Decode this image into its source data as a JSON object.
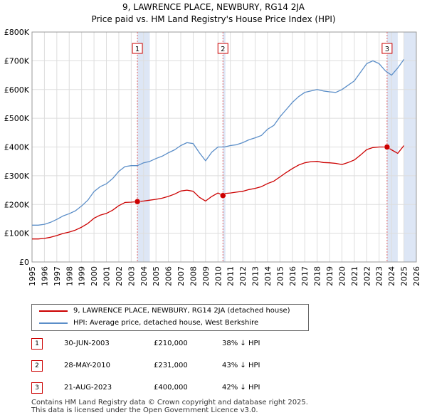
{
  "title": {
    "line1": "9, LAWRENCE PLACE, NEWBURY, RG14 2JA",
    "line2": "Price paid vs. HM Land Registry's House Price Index (HPI)"
  },
  "legend": {
    "red_label": "9, LAWRENCE PLACE, NEWBURY, RG14 2JA (detached house)",
    "blue_label": "HPI: Average price, detached house, West Berkshire"
  },
  "colors": {
    "red": "#cc0000",
    "blue": "#5b8ec8",
    "shade": "#dde6f5",
    "grid": "#dddddd",
    "marker_dash": "#e06666"
  },
  "sales": [
    {
      "num": "1",
      "date": "30-JUN-2003",
      "price": "£210,000",
      "hpi": "38% ↓ HPI"
    },
    {
      "num": "2",
      "date": "28-MAY-2010",
      "price": "£231,000",
      "hpi": "43% ↓ HPI"
    },
    {
      "num": "3",
      "date": "21-AUG-2023",
      "price": "£400,000",
      "hpi": "42% ↓ HPI"
    }
  ],
  "footer": {
    "line1": "Contains HM Land Registry data © Crown copyright and database right 2025.",
    "line2": "This data is licensed under the Open Government Licence v3.0."
  },
  "chart_data": {
    "type": "line",
    "title": "9, LAWRENCE PLACE, NEWBURY, RG14 2JA",
    "subtitle": "Price paid vs. HM Land Registry's House Price Index (HPI)",
    "xlim": [
      1995,
      2026
    ],
    "ylim": [
      0,
      800000
    ],
    "x_ticks": [
      1995,
      1996,
      1997,
      1998,
      1999,
      2000,
      2001,
      2002,
      2003,
      2004,
      2005,
      2006,
      2007,
      2008,
      2009,
      2010,
      2011,
      2012,
      2013,
      2014,
      2015,
      2016,
      2017,
      2018,
      2019,
      2020,
      2021,
      2022,
      2023,
      2024,
      2025,
      2026
    ],
    "y_ticks": [
      {
        "value": 0,
        "label": "£0"
      },
      {
        "value": 100000,
        "label": "£100K"
      },
      {
        "value": 200000,
        "label": "£200K"
      },
      {
        "value": 300000,
        "label": "£300K"
      },
      {
        "value": 400000,
        "label": "£400K"
      },
      {
        "value": 500000,
        "label": "£500K"
      },
      {
        "value": 600000,
        "label": "£600K"
      },
      {
        "value": 700000,
        "label": "£700K"
      },
      {
        "value": 800000,
        "label": "£800K"
      }
    ],
    "shaded_ranges": [
      [
        2003.5,
        2004.5
      ],
      [
        2010.4,
        2010.6
      ],
      [
        2023.64,
        2024.5
      ],
      [
        2025.0,
        2026.0
      ]
    ],
    "sale_markers": [
      {
        "label": "1",
        "x": 2003.5,
        "y": 210000
      },
      {
        "label": "2",
        "x": 2010.4,
        "y": 231000
      },
      {
        "label": "3",
        "x": 2023.64,
        "y": 400000
      }
    ],
    "series": [
      {
        "name": "HPI: Average price, detached house, West Berkshire",
        "color": "#5b8ec8",
        "x": [
          1995,
          1995.5,
          1996,
          1996.5,
          1997,
          1997.5,
          1998,
          1998.5,
          1999,
          1999.5,
          2000,
          2000.5,
          2001,
          2001.5,
          2002,
          2002.5,
          2003,
          2003.5,
          2004,
          2004.5,
          2005,
          2005.5,
          2006,
          2006.5,
          2007,
          2007.5,
          2008,
          2008.5,
          2009,
          2009.5,
          2010,
          2010.5,
          2011,
          2011.5,
          2012,
          2012.5,
          2013,
          2013.5,
          2014,
          2014.5,
          2015,
          2015.5,
          2016,
          2016.5,
          2017,
          2017.5,
          2018,
          2018.5,
          2019,
          2019.5,
          2020,
          2020.5,
          2021,
          2021.5,
          2022,
          2022.5,
          2023,
          2023.5,
          2024,
          2024.5,
          2025
        ],
        "values": [
          128000,
          128000,
          131000,
          138000,
          148000,
          160000,
          168000,
          178000,
          195000,
          215000,
          245000,
          262000,
          272000,
          290000,
          315000,
          332000,
          335000,
          335000,
          345000,
          350000,
          360000,
          368000,
          380000,
          390000,
          405000,
          415000,
          412000,
          380000,
          352000,
          382000,
          400000,
          400000,
          405000,
          408000,
          415000,
          425000,
          432000,
          440000,
          462000,
          475000,
          505000,
          530000,
          555000,
          575000,
          590000,
          595000,
          600000,
          595000,
          592000,
          590000,
          600000,
          615000,
          630000,
          660000,
          690000,
          700000,
          690000,
          665000,
          650000,
          675000,
          705000
        ]
      },
      {
        "name": "9, LAWRENCE PLACE, NEWBURY, RG14 2JA (detached house)",
        "color": "#cc0000",
        "x": [
          1995,
          1995.5,
          1996,
          1996.5,
          1997,
          1997.5,
          1998,
          1998.5,
          1999,
          1999.5,
          2000,
          2000.5,
          2001,
          2001.5,
          2002,
          2002.5,
          2003,
          2003.5,
          2004,
          2004.5,
          2005,
          2005.5,
          2006,
          2006.5,
          2007,
          2007.5,
          2008,
          2008.5,
          2009,
          2009.5,
          2010,
          2010.4,
          2010.5,
          2011,
          2011.5,
          2012,
          2012.5,
          2013,
          2013.5,
          2014,
          2014.5,
          2015,
          2015.5,
          2016,
          2016.5,
          2017,
          2017.5,
          2018,
          2018.5,
          2019,
          2019.5,
          2020,
          2020.5,
          2021,
          2021.5,
          2022,
          2022.5,
          2023,
          2023.64,
          2024,
          2024.5,
          2025
        ],
        "values": [
          80000,
          80000,
          82000,
          86000,
          92000,
          99000,
          104000,
          111000,
          121000,
          134000,
          152000,
          163000,
          169000,
          180000,
          196000,
          207000,
          208000,
          210000,
          212000,
          215000,
          218000,
          222000,
          228000,
          236000,
          247000,
          250000,
          246000,
          225000,
          212000,
          228000,
          240000,
          231000,
          238000,
          240000,
          243000,
          246000,
          252000,
          256000,
          262000,
          273000,
          281000,
          296000,
          311000,
          325000,
          337000,
          345000,
          349000,
          350000,
          346000,
          345000,
          343000,
          339000,
          346000,
          355000,
          372000,
          391000,
          398000,
          400000,
          400000,
          390000,
          378000,
          405000
        ]
      }
    ]
  }
}
